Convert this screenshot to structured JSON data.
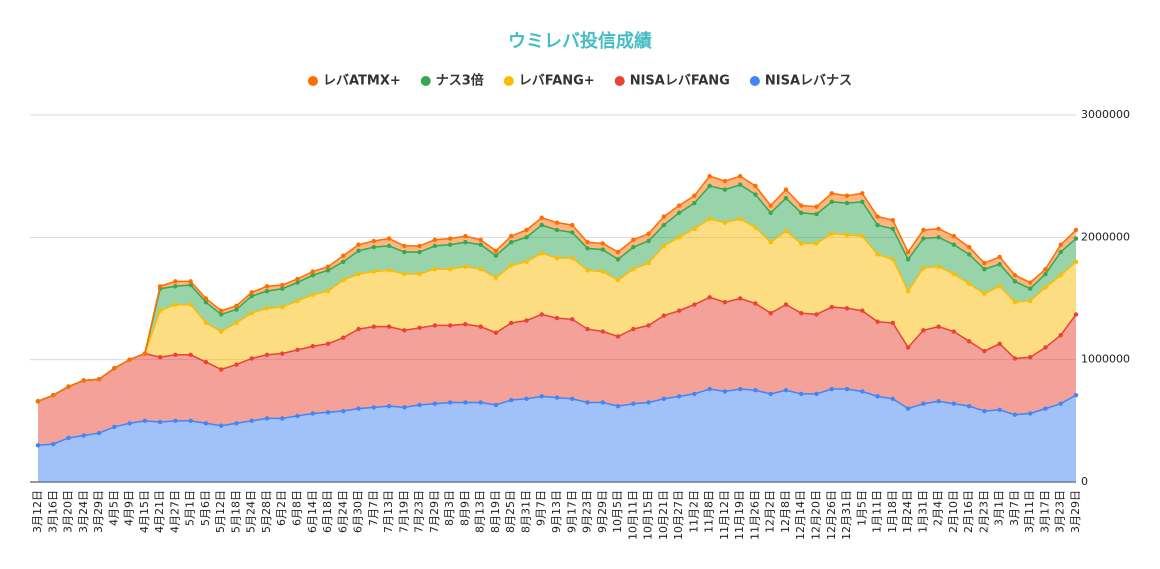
{
  "chart_data": {
    "type": "stacked_area",
    "title": "ウミレバ投信成績",
    "categories": [
      "3月12日",
      "3月16日",
      "3月20日",
      "3月24日",
      "3月29日",
      "4月5日",
      "4月9日",
      "4月15日",
      "4月21日",
      "4月27日",
      "5月1日",
      "5月6日",
      "5月12日",
      "5月18日",
      "5月24日",
      "5月28日",
      "6月2日",
      "6月8日",
      "6月14日",
      "6月18日",
      "6月24日",
      "6月30日",
      "7月7日",
      "7月13日",
      "7月19日",
      "7月23日",
      "7月29日",
      "8月3日",
      "8月9日",
      "8月13日",
      "8月19日",
      "8月25日",
      "8月31日",
      "9月7日",
      "9月13日",
      "9月17日",
      "9月23日",
      "9月29日",
      "10月5日",
      "10月11日",
      "10月15日",
      "10月21日",
      "10月27日",
      "11月2日",
      "11月8日",
      "11月12日",
      "11月19日",
      "11月26日",
      "12月2日",
      "12月8日",
      "12月14日",
      "12月20日",
      "12月26日",
      "12月31日",
      "1月5日",
      "1月11日",
      "1月18日",
      "1月24日",
      "1月31日",
      "2月4日",
      "2月10日",
      "2月16日",
      "2月23日",
      "3月1日",
      "3月7日",
      "3月11日",
      "3月17日",
      "3月23日",
      "3月29日"
    ],
    "series": [
      {
        "name": "NISAレバナス",
        "color": "#4285f4",
        "values": [
          300000,
          310000,
          360000,
          380000,
          400000,
          450000,
          480000,
          500000,
          490000,
          500000,
          500000,
          480000,
          460000,
          480000,
          500000,
          520000,
          520000,
          540000,
          560000,
          570000,
          580000,
          600000,
          610000,
          620000,
          610000,
          630000,
          640000,
          650000,
          650000,
          650000,
          630000,
          670000,
          680000,
          700000,
          690000,
          680000,
          650000,
          650000,
          620000,
          640000,
          650000,
          680000,
          700000,
          720000,
          760000,
          740000,
          760000,
          750000,
          720000,
          750000,
          720000,
          720000,
          760000,
          760000,
          740000,
          700000,
          680000,
          600000,
          640000,
          660000,
          640000,
          620000,
          580000,
          590000,
          550000,
          560000,
          600000,
          640000,
          710000
        ]
      },
      {
        "name": "NISAレバFANG",
        "color": "#ea4335",
        "values": [
          360000,
          400000,
          420000,
          450000,
          440000,
          480000,
          520000,
          550000,
          530000,
          540000,
          540000,
          500000,
          460000,
          480000,
          510000,
          520000,
          530000,
          540000,
          550000,
          560000,
          600000,
          650000,
          660000,
          650000,
          630000,
          630000,
          640000,
          630000,
          640000,
          620000,
          590000,
          630000,
          640000,
          670000,
          650000,
          650000,
          600000,
          580000,
          570000,
          610000,
          630000,
          680000,
          700000,
          730000,
          750000,
          730000,
          740000,
          710000,
          660000,
          700000,
          660000,
          650000,
          670000,
          660000,
          660000,
          610000,
          620000,
          500000,
          600000,
          610000,
          590000,
          530000,
          490000,
          540000,
          460000,
          460000,
          500000,
          560000,
          660000
        ]
      },
      {
        "name": "レバFANG+",
        "color": "#fbbc04",
        "values": [
          0,
          0,
          0,
          0,
          0,
          0,
          0,
          0,
          380000,
          410000,
          410000,
          320000,
          310000,
          340000,
          370000,
          380000,
          380000,
          400000,
          420000,
          430000,
          470000,
          450000,
          450000,
          460000,
          460000,
          440000,
          460000,
          460000,
          470000,
          470000,
          450000,
          470000,
          480000,
          500000,
          490000,
          500000,
          480000,
          490000,
          460000,
          490000,
          510000,
          570000,
          600000,
          620000,
          640000,
          650000,
          650000,
          620000,
          580000,
          600000,
          570000,
          580000,
          600000,
          600000,
          610000,
          550000,
          520000,
          460000,
          510000,
          490000,
          470000,
          470000,
          470000,
          470000,
          460000,
          460000,
          490000,
          490000,
          430000
        ]
      },
      {
        "name": "ナス3倍",
        "color": "#34a853",
        "values": [
          0,
          0,
          0,
          0,
          0,
          0,
          0,
          0,
          180000,
          150000,
          160000,
          170000,
          140000,
          110000,
          140000,
          140000,
          150000,
          150000,
          160000,
          170000,
          150000,
          190000,
          200000,
          200000,
          180000,
          180000,
          190000,
          200000,
          200000,
          200000,
          180000,
          190000,
          200000,
          230000,
          230000,
          210000,
          180000,
          180000,
          170000,
          180000,
          180000,
          170000,
          200000,
          210000,
          270000,
          270000,
          280000,
          270000,
          240000,
          270000,
          250000,
          240000,
          260000,
          260000,
          280000,
          240000,
          250000,
          260000,
          240000,
          240000,
          240000,
          240000,
          200000,
          180000,
          170000,
          100000,
          110000,
          190000,
          190000
        ]
      },
      {
        "name": "レバATMX+",
        "color": "#ff6d01",
        "values": [
          0,
          0,
          0,
          0,
          0,
          0,
          0,
          0,
          20000,
          40000,
          30000,
          30000,
          30000,
          30000,
          30000,
          40000,
          30000,
          30000,
          30000,
          30000,
          50000,
          50000,
          50000,
          60000,
          50000,
          50000,
          50000,
          50000,
          50000,
          40000,
          40000,
          50000,
          60000,
          60000,
          60000,
          60000,
          50000,
          50000,
          60000,
          60000,
          60000,
          70000,
          60000,
          60000,
          80000,
          70000,
          70000,
          70000,
          60000,
          70000,
          60000,
          60000,
          70000,
          60000,
          70000,
          70000,
          70000,
          60000,
          70000,
          70000,
          70000,
          60000,
          50000,
          60000,
          50000,
          50000,
          40000,
          60000,
          70000
        ]
      }
    ],
    "ylim": [
      0,
      3000000
    ],
    "yticks": [
      0,
      1000000,
      2000000,
      3000000
    ],
    "grid": true,
    "legend": "top"
  }
}
